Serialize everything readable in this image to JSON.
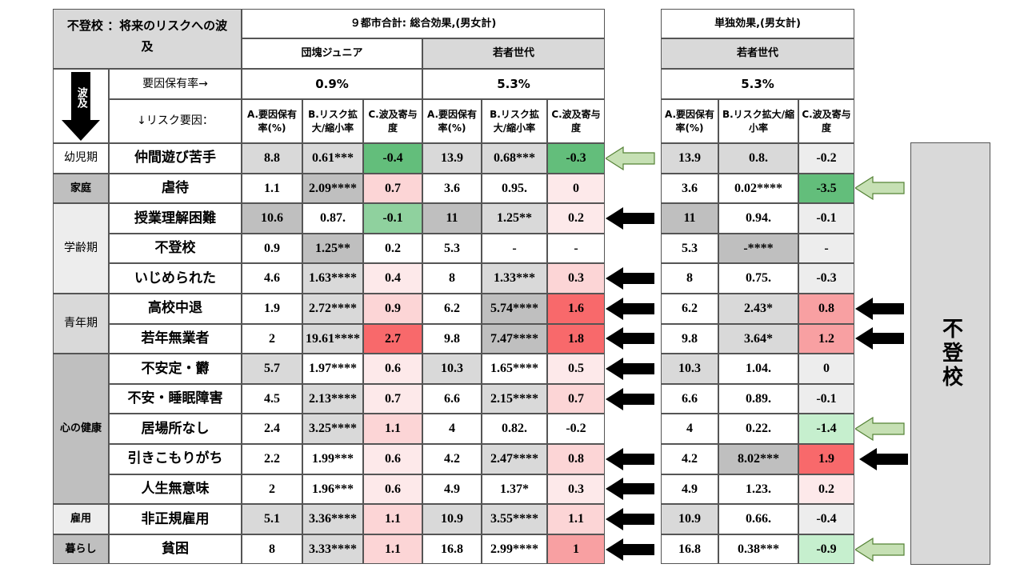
{
  "title_line1": "不登校 ：将来のリスクへの波",
  "title_line2": "及",
  "header_total": "９都市合計: 総合効果,(男女計)",
  "header_single": "単独効果,(男女計)",
  "group_dankai": "団塊ジュニア",
  "group_wakamono": "若者世代",
  "group_wakamono2": "若者世代",
  "hakyu_label": "波及",
  "prevalence_label": "要因保有率→",
  "prevalence": [
    "0.9%",
    "5.3%",
    "5.3%"
  ],
  "risk_label": "↓リスク要因：",
  "colA": "A.要因保有率(%)",
  "colB": "B.リスク拡大/縮小率",
  "colC": "C.波及寄与度",
  "right_label": "不登校",
  "sections": [
    {
      "name": "幼児期"
    },
    {
      "name": "家庭"
    },
    {
      "name": "学齢期"
    },
    {
      "name": "青年期"
    },
    {
      "name": "心の健康"
    },
    {
      "name": "雇用"
    },
    {
      "name": "暮らし"
    }
  ],
  "rows": [
    {
      "label": "仲間遊び苦手",
      "v": [
        "8.8",
        "0.61***",
        "-0.4",
        "13.9",
        "0.68***",
        "-0.3",
        "13.9",
        "0.8.",
        "-0.2"
      ]
    },
    {
      "label": "虐待",
      "v": [
        "1.1",
        "2.09****",
        "0.7",
        "3.6",
        "0.95.",
        "0",
        "3.6",
        "0.02****",
        "-3.5"
      ]
    },
    {
      "label": "授業理解困難",
      "v": [
        "10.6",
        "0.87.",
        "-0.1",
        "11",
        "1.25**",
        "0.2",
        "11",
        "0.94.",
        "-0.1"
      ]
    },
    {
      "label": "不登校",
      "v": [
        "0.9",
        "1.25**",
        "0.2",
        "5.3",
        "-",
        "-",
        "5.3",
        "-****",
        "-"
      ]
    },
    {
      "label": "いじめられた",
      "v": [
        "4.6",
        "1.63****",
        "0.4",
        "8",
        "1.33***",
        "0.3",
        "8",
        "0.75.",
        "-0.3"
      ]
    },
    {
      "label": "高校中退",
      "v": [
        "1.9",
        "2.72****",
        "0.9",
        "6.2",
        "5.74****",
        "1.6",
        "6.2",
        "2.43*",
        "0.8"
      ]
    },
    {
      "label": "若年無業者",
      "v": [
        "2",
        "19.61****",
        "2.7",
        "9.8",
        "7.47****",
        "1.8",
        "9.8",
        "3.64*",
        "1.2"
      ]
    },
    {
      "label": "不安定・欝",
      "v": [
        "5.7",
        "1.97****",
        "0.6",
        "10.3",
        "1.65****",
        "0.5",
        "10.3",
        "1.04.",
        "0"
      ]
    },
    {
      "label": "不安・睡眠障害",
      "v": [
        "4.5",
        "2.13****",
        "0.7",
        "6.6",
        "2.15****",
        "0.7",
        "6.6",
        "0.89.",
        "-0.1"
      ]
    },
    {
      "label": "居場所なし",
      "v": [
        "2.4",
        "3.25****",
        "1.1",
        "4",
        "0.82.",
        "-0.2",
        "4",
        "0.22.",
        "-1.4"
      ]
    },
    {
      "label": "引きこもりがち",
      "v": [
        "2.2",
        "1.99***",
        "0.6",
        "4.2",
        "2.47****",
        "0.8",
        "4.2",
        "8.02***",
        "1.9"
      ]
    },
    {
      "label": "人生無意味",
      "v": [
        "2",
        "1.96***",
        "0.6",
        "4.9",
        "1.37*",
        "0.3",
        "4.9",
        "1.23.",
        "0.2"
      ]
    },
    {
      "label": "非正規雇用",
      "v": [
        "5.1",
        "3.36****",
        "1.1",
        "10.9",
        "3.55****",
        "1.1",
        "10.9",
        "0.66.",
        "-0.4"
      ]
    },
    {
      "label": "貧困",
      "v": [
        "8",
        "3.33****",
        "1.1",
        "16.8",
        "2.99****",
        "1",
        "16.8",
        "0.38***",
        "-0.9"
      ]
    }
  ],
  "colors": {
    "green_dark": "#63be7b",
    "green_mid": "#8fd19e",
    "green_light": "#c6efce",
    "red_dark": "#f8696b",
    "red_mid": "#f8a0a2",
    "red_light": "#fcd5d6",
    "red_pale": "#fde9ea",
    "gray": "#d9d9d9"
  }
}
